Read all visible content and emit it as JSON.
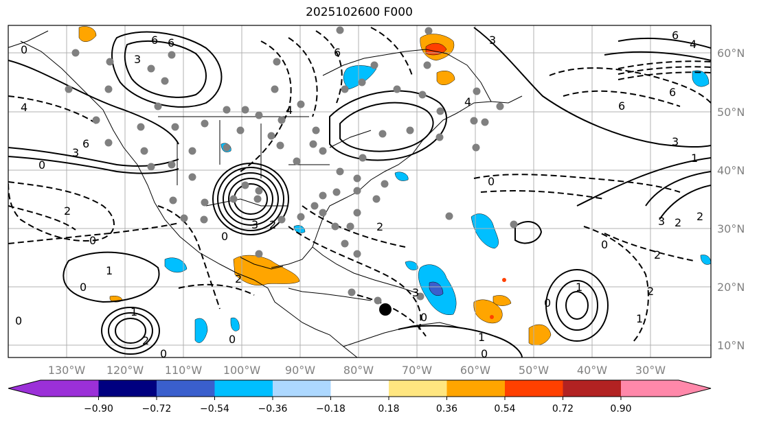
{
  "title": "2025102600 F000",
  "map": {
    "lon_ticks": [
      "130°W",
      "120°W",
      "110°W",
      "100°W",
      "90°W",
      "80°W",
      "70°W",
      "60°W",
      "50°W",
      "40°W",
      "30°W"
    ],
    "lat_ticks": [
      "60°N",
      "50°N",
      "40°N",
      "30°N",
      "20°N",
      "10°N"
    ],
    "contour_labels": [
      "0",
      "6",
      "6",
      "3",
      "4",
      "6",
      "3",
      "2",
      "6",
      "3",
      "4",
      "4",
      "6",
      "4",
      "6",
      "6",
      "3",
      "0",
      "0",
      "3",
      "3",
      "2",
      "2",
      "2",
      "0",
      "1",
      "0",
      "0",
      "2",
      "1",
      "1",
      "2",
      "0",
      "0",
      "0",
      "1",
      "0",
      "2",
      "3",
      "2",
      "0",
      "1",
      "2",
      "1",
      "0",
      "0"
    ],
    "marker": {
      "lon": -75.5,
      "lat": 16.5
    }
  },
  "colorbar": {
    "ticks": [
      "−0.90",
      "−0.72",
      "−0.54",
      "−0.36",
      "−0.18",
      "0.18",
      "0.36",
      "0.54",
      "0.72",
      "0.90"
    ],
    "colors": [
      "#9b30d8",
      "#000080",
      "#3a5fcd",
      "#00bfff",
      "#add8ff",
      "#ffffff",
      "#ffe680",
      "#ffa500",
      "#ff4000",
      "#b22222",
      "#ff88aa"
    ]
  }
}
